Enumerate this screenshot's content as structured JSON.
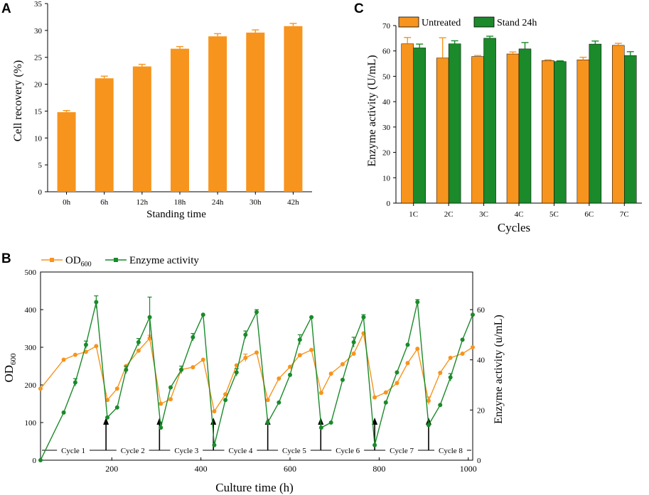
{
  "panels": {
    "a": "A",
    "b": "B",
    "c": "C"
  },
  "colors": {
    "orange": "#f7941d",
    "green": "#1a8a2a",
    "axis": "#000000"
  },
  "chart_data": [
    {
      "id": "A",
      "type": "bar",
      "categories": [
        "0h",
        "6h",
        "12h",
        "18h",
        "24h",
        "30h",
        "42h"
      ],
      "values": [
        14.8,
        21.1,
        23.3,
        26.6,
        28.9,
        29.6,
        30.8
      ],
      "errors": [
        0.3,
        0.4,
        0.4,
        0.4,
        0.5,
        0.5,
        0.5
      ],
      "xlabel": "Standing time",
      "ylabel": "Cell recovery (%)",
      "ylim": [
        0,
        35
      ],
      "yticks": [
        0,
        5,
        10,
        15,
        20,
        25,
        30,
        35
      ]
    },
    {
      "id": "C",
      "type": "bar",
      "categories": [
        "1C",
        "2C",
        "3C",
        "4C",
        "5C",
        "6C",
        "7C"
      ],
      "series": [
        {
          "name": "Untreated",
          "values": [
            62.8,
            57.2,
            57.8,
            58.8,
            56.2,
            56.5,
            62.2
          ],
          "errors": [
            2.5,
            8.0,
            0.4,
            0.8,
            0.3,
            1.0,
            0.8
          ]
        },
        {
          "name": "Stand 24h",
          "values": [
            61.2,
            62.8,
            65.0,
            60.8,
            55.8,
            62.7,
            58.2
          ],
          "errors": [
            1.5,
            1.2,
            0.8,
            2.5,
            0.3,
            1.2,
            1.5
          ]
        }
      ],
      "xlabel": "Cycles",
      "ylabel": "Enzyme activity (U/mL)",
      "ylim": [
        0,
        70
      ],
      "yticks": [
        0,
        10,
        20,
        30,
        40,
        50,
        60,
        70
      ],
      "legend": "top-left"
    },
    {
      "id": "B",
      "type": "line",
      "xlabel": "Culture time (h)",
      "ylabel_left": "OD",
      "ylabel_left_sub": "600",
      "ylabel_right": "Enzyme activity (u/mL)",
      "xlim": [
        40,
        1010
      ],
      "xticks": [
        200,
        400,
        600,
        800,
        1000
      ],
      "ylim_left": [
        0,
        500
      ],
      "yticks_left": [
        0,
        100,
        200,
        300,
        400,
        500
      ],
      "ylim_right": [
        0,
        75
      ],
      "yticks_right": [
        0,
        20,
        40,
        60
      ],
      "legend": {
        "od_label": "OD",
        "od_sub": "600",
        "ea_label": "Enzyme activity"
      },
      "series": [
        {
          "name": "OD600",
          "axis": "left",
          "x": [
            40,
            92,
            118,
            142,
            165,
            190,
            212,
            232,
            260,
            285,
            310,
            332,
            356,
            382,
            405,
            430,
            455,
            480,
            500,
            525,
            550,
            575,
            600,
            622,
            648,
            670,
            692,
            718,
            743,
            765,
            790,
            815,
            840,
            864,
            886,
            911,
            937,
            960,
            987,
            1010
          ],
          "y": [
            190,
            267,
            280,
            288,
            303,
            160,
            190,
            250,
            291,
            324,
            150,
            162,
            241,
            247,
            267,
            130,
            175,
            252,
            272,
            286,
            160,
            217,
            248,
            279,
            293,
            179,
            230,
            255,
            283,
            337,
            167,
            180,
            205,
            258,
            296,
            158,
            232,
            272,
            283,
            300
          ],
          "errors": [
            0,
            0,
            0,
            0,
            0,
            0,
            0,
            0,
            0,
            8,
            0,
            0,
            0,
            0,
            0,
            0,
            0,
            0,
            10,
            0,
            0,
            0,
            0,
            0,
            0,
            0,
            0,
            0,
            0,
            0,
            0,
            0,
            0,
            0,
            0,
            10,
            0,
            0,
            0,
            0
          ]
        },
        {
          "name": "Enzyme activity",
          "axis": "right",
          "x": [
            40,
            92,
            118,
            142,
            165,
            190,
            212,
            232,
            260,
            285,
            310,
            332,
            356,
            382,
            405,
            430,
            455,
            480,
            500,
            525,
            550,
            575,
            600,
            622,
            648,
            670,
            692,
            718,
            743,
            765,
            790,
            815,
            840,
            864,
            886,
            911,
            937,
            960,
            987,
            1010
          ],
          "y": [
            0,
            19,
            31,
            46,
            63,
            17,
            21,
            36,
            47,
            57,
            13,
            29,
            36,
            49,
            58,
            6,
            24,
            35,
            50,
            59,
            15,
            23,
            34,
            48,
            57,
            13,
            15,
            32,
            47,
            57,
            6,
            23,
            35,
            46,
            63,
            14,
            22,
            33,
            48,
            58
          ],
          "errors": [
            0,
            0,
            1.5,
            1.5,
            2.5,
            0,
            0,
            1.5,
            1.5,
            8,
            0,
            0,
            1.5,
            1.5,
            0,
            0,
            0,
            1.5,
            1.5,
            1,
            0,
            0,
            0,
            2,
            0,
            0,
            0,
            0,
            2,
            1,
            0,
            0,
            0,
            0,
            1,
            0,
            0,
            1.5,
            0,
            0
          ]
        }
      ],
      "cycle_arrows_x": [
        187,
        307,
        428,
        550,
        669,
        790,
        911
      ],
      "cycle_labels": [
        "Cycle 1",
        "Cycle 2",
        "Cycle 3",
        "Cycle 4",
        "Cycle 5",
        "Cycle 6",
        "Cycle 7",
        "Cycle 8"
      ]
    }
  ]
}
